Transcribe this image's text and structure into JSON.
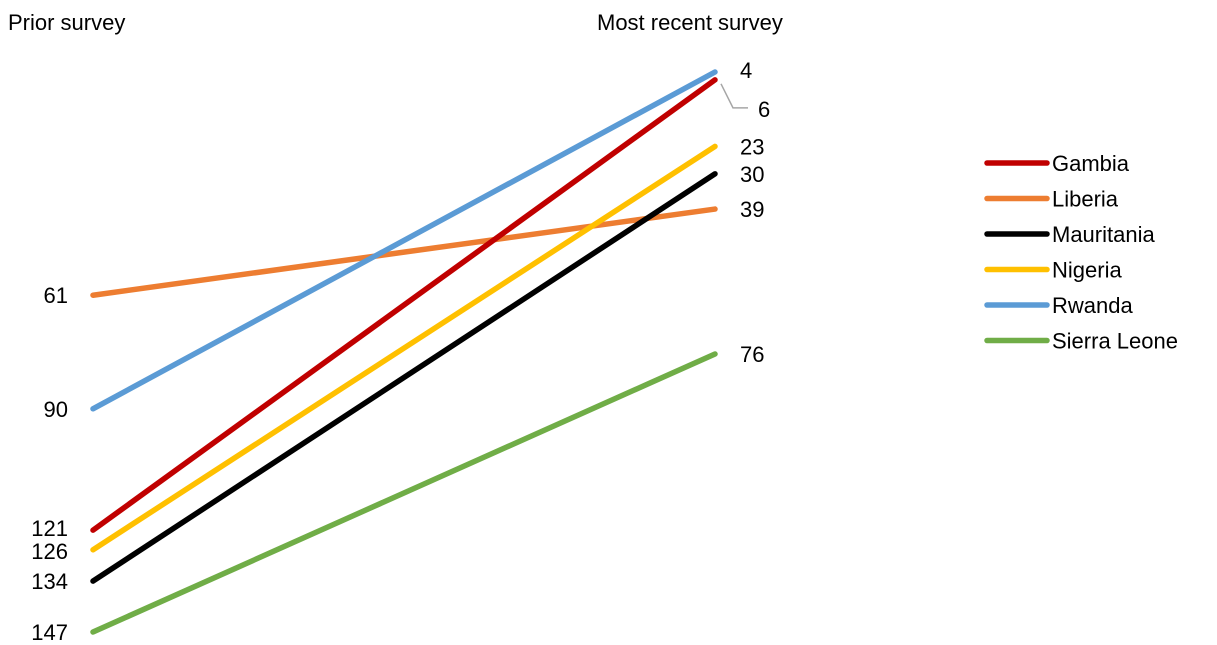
{
  "chart_data": {
    "type": "line",
    "categories": [
      "Prior survey",
      "Most recent survey"
    ],
    "y_reversed": true,
    "series": [
      {
        "name": "Gambia",
        "color": "#C00000",
        "values": [
          121,
          6
        ]
      },
      {
        "name": "Liberia",
        "color": "#ED7D31",
        "values": [
          61,
          39
        ]
      },
      {
        "name": "Mauritania",
        "color": "#000000",
        "values": [
          134,
          30
        ]
      },
      {
        "name": "Nigeria",
        "color": "#FFC000",
        "values": [
          126,
          23
        ]
      },
      {
        "name": "Rwanda",
        "color": "#5B9BD5",
        "values": [
          90,
          4
        ]
      },
      {
        "name": "Sierra Leone",
        "color": "#70AD47",
        "values": [
          147,
          76
        ]
      }
    ],
    "legend_position": "right",
    "grid": false
  }
}
